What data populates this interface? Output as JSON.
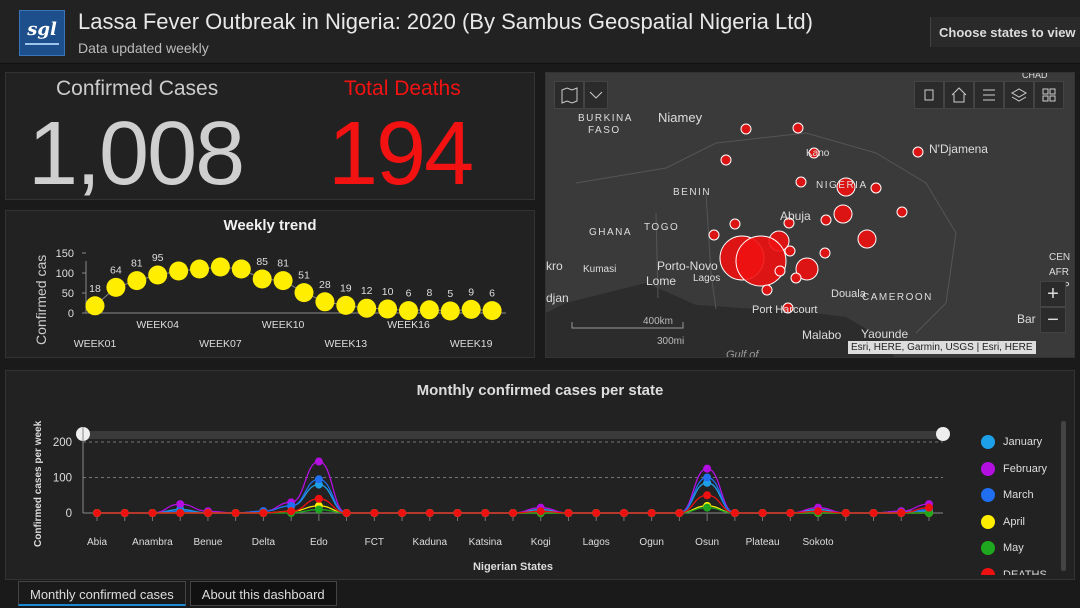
{
  "header": {
    "logo_text": "sgl",
    "title": "Lassa Fever Outbreak in Nigeria: 2020 (By Sambus Geospatial Nigeria Ltd)",
    "subtitle": "Data updated weekly",
    "choose_label": "Choose states to view"
  },
  "counts": {
    "confirmed_label": "Confirmed Cases",
    "confirmed_value": "1,008",
    "deaths_label": "Total Deaths",
    "deaths_value": "194",
    "confirmed_color": "#cfcfcf",
    "deaths_color": "#f31212"
  },
  "chart_data": [
    {
      "type": "line",
      "title": "Weekly trend",
      "ylabel": "Confirmed cas",
      "xlabel": "",
      "x_tick_labels_low": [
        "WEEK01",
        "WEEK07",
        "WEEK13",
        "WEEK19"
      ],
      "x_tick_labels_high": [
        "WEEK04",
        "WEEK10",
        "WEEK16"
      ],
      "y_ticks": [
        0,
        50,
        100,
        150
      ],
      "ylim": [
        0,
        150
      ],
      "values": [
        18,
        64,
        81,
        95,
        105,
        110,
        115,
        110,
        85,
        81,
        51,
        28,
        19,
        12,
        10,
        6,
        8,
        5,
        9,
        6
      ],
      "data_labels": [
        "18",
        "64",
        "81",
        "95",
        "",
        "",
        "",
        "",
        "85",
        "81",
        "51",
        "28",
        "19",
        "12",
        "10",
        "6",
        "8",
        "5",
        "9",
        "6"
      ],
      "marker_color": "#ffee00",
      "grid": false
    },
    {
      "type": "line",
      "title": "Monthly confirmed cases per state",
      "xlabel": "Nigerian States",
      "ylabel": "Confirmed cases per week",
      "y_ticks": [
        0,
        100,
        200
      ],
      "ylim": [
        0,
        200
      ],
      "grid": true,
      "legend_position": "right",
      "x_tick_labels": [
        "Abia",
        "Anambra",
        "Benue",
        "Delta",
        "Edo",
        "FCT",
        "Kaduna",
        "Katsina",
        "Kogi",
        "Lagos",
        "Ogun",
        "Osun",
        "Plateau",
        "Sokoto"
      ],
      "num_points": 31,
      "series": [
        {
          "name": "January",
          "color": "#1ea0e8",
          "values": [
            0,
            0,
            0,
            10,
            0,
            0,
            5,
            20,
            80,
            0,
            0,
            0,
            0,
            0,
            0,
            0,
            10,
            0,
            0,
            0,
            0,
            0,
            85,
            0,
            0,
            0,
            10,
            0,
            0,
            5,
            5
          ]
        },
        {
          "name": "February",
          "color": "#b30fe0",
          "values": [
            0,
            0,
            0,
            25,
            5,
            0,
            5,
            30,
            145,
            0,
            0,
            0,
            0,
            0,
            0,
            0,
            15,
            0,
            0,
            0,
            0,
            0,
            125,
            0,
            0,
            0,
            15,
            0,
            0,
            5,
            25
          ]
        },
        {
          "name": "March",
          "color": "#1f6ff0",
          "values": [
            0,
            0,
            0,
            5,
            0,
            0,
            5,
            20,
            95,
            0,
            0,
            0,
            0,
            0,
            0,
            0,
            5,
            0,
            0,
            0,
            0,
            0,
            100,
            0,
            0,
            0,
            5,
            0,
            0,
            0,
            10
          ]
        },
        {
          "name": "April",
          "color": "#ffee00",
          "values": [
            0,
            0,
            0,
            0,
            0,
            0,
            0,
            5,
            20,
            0,
            0,
            0,
            0,
            0,
            0,
            0,
            0,
            0,
            0,
            0,
            0,
            0,
            20,
            0,
            0,
            0,
            0,
            0,
            0,
            0,
            0
          ]
        },
        {
          "name": "May",
          "color": "#1fa81f",
          "values": [
            0,
            0,
            0,
            0,
            0,
            0,
            0,
            0,
            10,
            0,
            0,
            0,
            0,
            0,
            0,
            0,
            0,
            0,
            0,
            0,
            0,
            0,
            15,
            0,
            0,
            0,
            0,
            0,
            0,
            0,
            0
          ]
        },
        {
          "name": "DEATHS",
          "color": "#ee1111",
          "values": [
            0,
            0,
            0,
            0,
            0,
            0,
            0,
            5,
            40,
            0,
            0,
            0,
            0,
            0,
            0,
            0,
            5,
            0,
            0,
            0,
            0,
            0,
            50,
            0,
            0,
            0,
            5,
            0,
            0,
            0,
            15
          ]
        }
      ]
    }
  ],
  "map": {
    "labels": [
      "BURKINA",
      "FASO",
      "Niamey",
      "Kano",
      "NIGERIA",
      "N'Djamena",
      "BENIN",
      "GHANA",
      "TOGO",
      "Abuja",
      "Kumasi",
      "Porto-Novo",
      "Lome",
      "Lagos",
      "Port Harcourt",
      "CAMEROON",
      "Douala",
      "Malabo",
      "Yaounde",
      "Gulf of",
      "Bar",
      "kro",
      "djan",
      "CHAD",
      "CEN",
      "AFR",
      "REP"
    ],
    "scale_km": "400km",
    "scale_mi": "300mi",
    "attribution": "Esri, HERE, Garmin, USGS | Esri, HERE",
    "zoom_in": "+",
    "zoom_out": "−",
    "bubble_color": "#ee1111"
  },
  "tabs": [
    "Monthly confirmed cases",
    "About this dashboard"
  ]
}
